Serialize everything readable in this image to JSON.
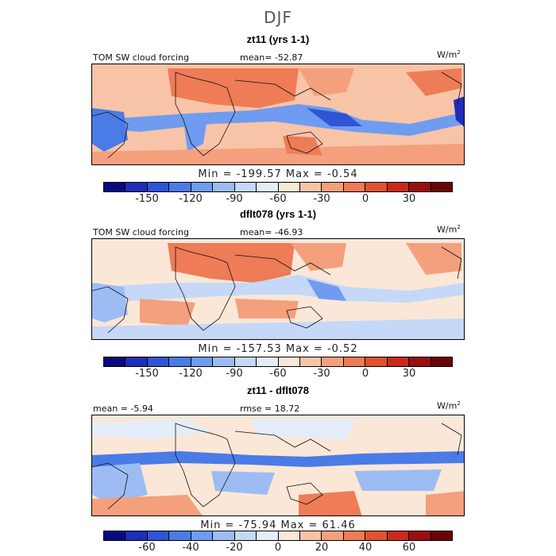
{
  "page_title": "DJF",
  "units": "W/m",
  "units_sup": "2",
  "panels": [
    {
      "title": "zt11 (yrs 1-1)",
      "left_label": "TOM SW cloud forcing",
      "stat_label": "mean= -52.87",
      "minmax": "Min = -199.57 Max =  -0.54"
    },
    {
      "title": "dflt078 (yrs 1-1)",
      "left_label": "TOM SW cloud forcing",
      "stat_label": "mean= -46.93",
      "minmax": "Min = -157.53 Max =  -0.52"
    },
    {
      "title": "zt11 - dflt078",
      "left_label": "mean =  -5.94",
      "stat_label": "rmse =  18.72",
      "minmax": "Min = -75.94 Max =  61.46"
    }
  ],
  "colorbar_top": {
    "colors": [
      "#0a0a80",
      "#1f2eb8",
      "#2f55d6",
      "#4a7be6",
      "#6f9cf0",
      "#9dbcf4",
      "#c5d8f7",
      "#e3eefa",
      "#fbe7d8",
      "#f8c4a8",
      "#f4a07c",
      "#ee7c56",
      "#e05232",
      "#c82a1a",
      "#9a0f0f",
      "#6a0505"
    ],
    "ticks": [
      "-150",
      "-120",
      "-90",
      "-60",
      "-30",
      "0",
      "30"
    ]
  },
  "colorbar_diff": {
    "colors": [
      "#0a0a80",
      "#1f2eb8",
      "#2f55d6",
      "#4a7be6",
      "#6f9cf0",
      "#9dbcf4",
      "#c5d8f7",
      "#e3eefa",
      "#fbe7d8",
      "#f8c4a8",
      "#f4a07c",
      "#ee7c56",
      "#e05232",
      "#c82a1a",
      "#9a0f0f",
      "#6a0505"
    ],
    "ticks": [
      "-60",
      "-40",
      "-20",
      "0",
      "20",
      "40",
      "60"
    ]
  }
}
